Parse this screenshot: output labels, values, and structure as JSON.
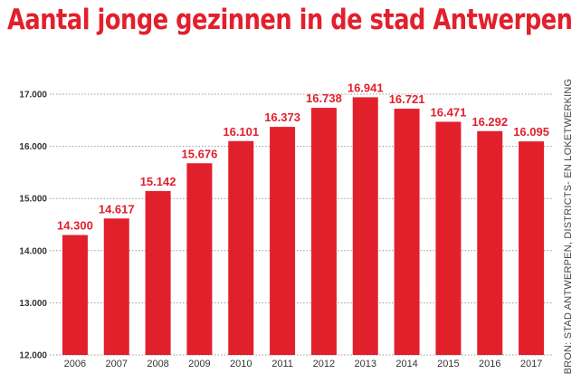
{
  "chart_data": {
    "type": "bar",
    "title": "Aantal jonge gezinnen in de stad Antwerpen",
    "source": "BRON: STAD ANTWERPEN, DISTRICTS- EN LOKETWERKING",
    "categories": [
      "2006",
      "2007",
      "2008",
      "2009",
      "2010",
      "2011",
      "2012",
      "2013",
      "2014",
      "2015",
      "2016",
      "2017"
    ],
    "values": [
      14300,
      14617,
      15142,
      15676,
      16101,
      16373,
      16738,
      16941,
      16721,
      16471,
      16292,
      16095
    ],
    "value_labels": [
      "14.300",
      "14.617",
      "15.142",
      "15.676",
      "16.101",
      "16.373",
      "16.738",
      "16.941",
      "16.721",
      "16.471",
      "16.292",
      "16.095"
    ],
    "yticks": [
      12000,
      13000,
      14000,
      15000,
      16000,
      17000
    ],
    "ytick_labels": [
      "12.000",
      "13.000",
      "14.000",
      "15.000",
      "16.000",
      "17.000"
    ],
    "ylim": [
      12000,
      17000
    ],
    "grid": "horizontal-dotted",
    "colors": {
      "bar": "#e2202c",
      "title": "#e2202c",
      "label": "#e2202c",
      "grid": "#999999"
    }
  }
}
